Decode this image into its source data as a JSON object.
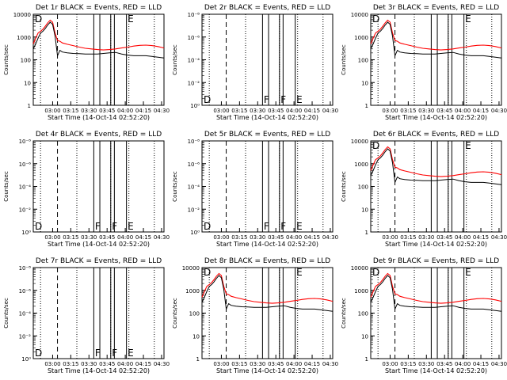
{
  "chart_data": {
    "type": "line",
    "ylabel": "Counts/sec",
    "xlabel": "Start Time (14-Oct-14 02:52:20)",
    "x_ticks": [
      "03:00",
      "03:15",
      "03:30",
      "03:45",
      "04:00",
      "04:15",
      "04:30"
    ],
    "x_range_minutes": [
      -8,
      100
    ],
    "y_scale": "log",
    "series_colors": {
      "events": "#000000",
      "lld": "#ff0000"
    },
    "markers": {
      "dotted_at": [
        -2,
        28,
        56,
        71,
        92
      ],
      "dashed_at": [
        12
      ],
      "solid_at": [
        42,
        47,
        56,
        59,
        69
      ],
      "letters": [
        {
          "text": "F",
          "x": 43
        },
        {
          "text": "F",
          "x": 57
        },
        {
          "text": "E",
          "x": 70
        }
      ]
    },
    "panels": [
      {
        "title": "Det 1r BLACK = Events, RED = LLD",
        "has_data": true,
        "y_tick_labels": [
          "1",
          "10",
          "100",
          "1000",
          "10000"
        ]
      },
      {
        "title": "Det 2r BLACK = Events, RED = LLD",
        "has_data": false,
        "y_tick_labels": [
          "10⁰",
          "10⁻²",
          "10⁻⁴",
          "10⁻⁶",
          "10⁻⁸"
        ],
        "letters": [
          "D",
          "F",
          "F",
          "E"
        ]
      },
      {
        "title": "Det 3r BLACK = Events, RED = LLD",
        "has_data": true,
        "y_tick_labels": [
          "1",
          "10",
          "100",
          "1000",
          "10000"
        ]
      },
      {
        "title": "Det 4r BLACK = Events, RED = LLD",
        "has_data": false,
        "y_tick_labels": [
          "10⁰",
          "10⁻²",
          "10⁻⁴",
          "10⁻⁶",
          "10⁻⁸"
        ],
        "letters": [
          "D",
          "F",
          "F",
          "E"
        ]
      },
      {
        "title": "Det 5r BLACK = Events, RED = LLD",
        "has_data": false,
        "y_tick_labels": [
          "10⁰",
          "10⁻²",
          "10⁻⁴",
          "10⁻⁶",
          "10⁻⁸"
        ],
        "letters": [
          "D",
          "F",
          "F",
          "E"
        ]
      },
      {
        "title": "Det 6r BLACK = Events, RED = LLD",
        "has_data": true,
        "y_tick_labels": [
          "1",
          "10",
          "100",
          "1000",
          "10000"
        ]
      },
      {
        "title": "Det 7r BLACK = Events, RED = LLD",
        "has_data": false,
        "y_tick_labels": [
          "10⁰",
          "10⁻²",
          "10⁻⁴",
          "10⁻⁶",
          "10⁻⁸"
        ],
        "letters": [
          "D",
          "F",
          "F",
          "E"
        ]
      },
      {
        "title": "Det 8r BLACK = Events, RED = LLD",
        "has_data": true,
        "y_tick_labels": [
          "1",
          "10",
          "100",
          "1000",
          "10000"
        ]
      },
      {
        "title": "Det 9r BLACK = Events, RED = LLD",
        "has_data": true,
        "y_tick_labels": [
          "1",
          "10",
          "100",
          "1000",
          "10000"
        ]
      }
    ],
    "lld_series": {
      "x": [
        -8,
        -6,
        -4,
        -2,
        0,
        2,
        4,
        6,
        8,
        10,
        12,
        14,
        16,
        20,
        25,
        30,
        35,
        40,
        45,
        50,
        55,
        60,
        65,
        70,
        75,
        80,
        85,
        90,
        95,
        100
      ],
      "y": [
        500,
        900,
        1500,
        1800,
        2200,
        3000,
        4200,
        5500,
        4500,
        1500,
        700,
        650,
        550,
        480,
        420,
        360,
        320,
        300,
        280,
        270,
        280,
        300,
        330,
        360,
        400,
        430,
        440,
        420,
        380,
        330
      ]
    },
    "events_series": {
      "x": [
        -8,
        -6,
        -4,
        -2,
        0,
        2,
        4,
        6,
        8,
        10,
        12,
        14,
        16,
        20,
        25,
        30,
        35,
        40,
        45,
        50,
        55,
        60,
        65,
        70,
        75,
        80,
        85,
        90,
        95,
        100
      ],
      "y": [
        300,
        500,
        900,
        1500,
        1800,
        2400,
        3400,
        4500,
        3600,
        1100,
        150,
        260,
        220,
        200,
        190,
        185,
        180,
        180,
        180,
        190,
        200,
        210,
        180,
        160,
        150,
        150,
        150,
        140,
        130,
        120
      ]
    }
  }
}
